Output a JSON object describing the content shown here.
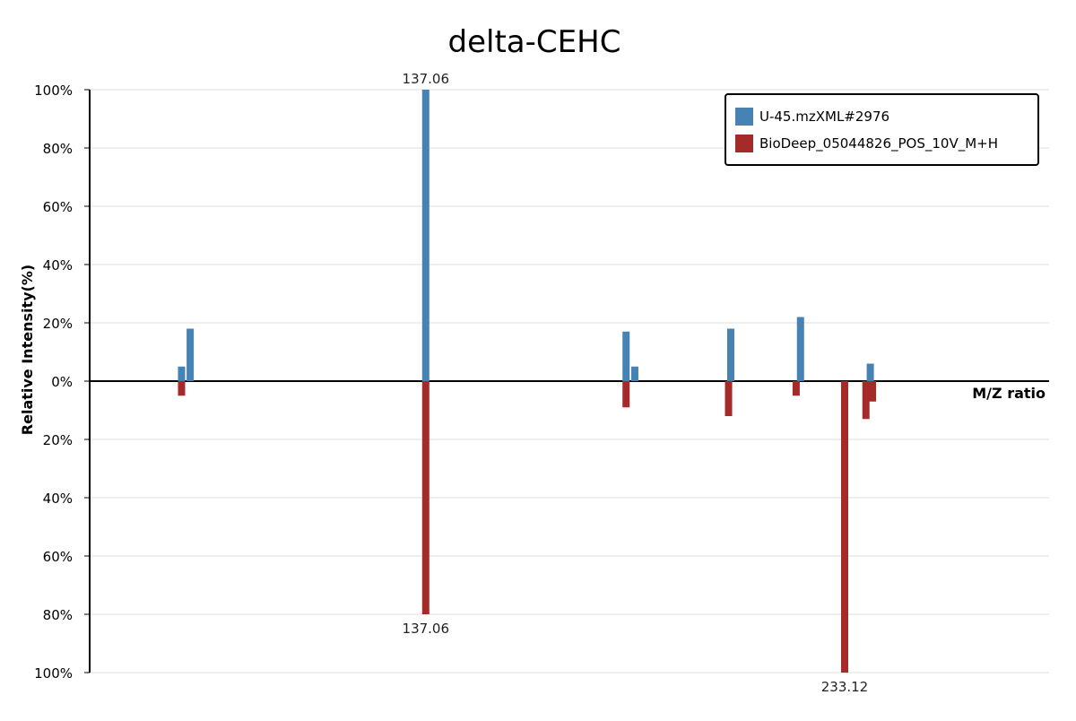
{
  "chart_data": {
    "type": "bar",
    "subtype": "mirrored-mass-spectrum",
    "title": "delta-CEHC",
    "xlabel": "M/Z ratio",
    "ylabel": "Relative Intensity(%)",
    "xlim": [
      60,
      280
    ],
    "ylim_top": [
      0,
      100
    ],
    "ylim_bottom": [
      0,
      100
    ],
    "yticks_top": [
      "0%",
      "20%",
      "40%",
      "60%",
      "80%",
      "100%"
    ],
    "yticks_bottom": [
      "20%",
      "40%",
      "60%",
      "80%",
      "100%"
    ],
    "grid": true,
    "legend_position": "top-right",
    "series": [
      {
        "name": "U-45.mzXML#2976",
        "color": "#4682b4",
        "direction": "up",
        "points": [
          {
            "mz": 81.07,
            "intensity": 5
          },
          {
            "mz": 83.05,
            "intensity": 18
          },
          {
            "mz": 137.06,
            "intensity": 100,
            "label": "137.06"
          },
          {
            "mz": 183.0,
            "intensity": 17
          },
          {
            "mz": 185.0,
            "intensity": 5
          },
          {
            "mz": 207.0,
            "intensity": 18
          },
          {
            "mz": 223.0,
            "intensity": 22
          },
          {
            "mz": 239.0,
            "intensity": 6
          }
        ]
      },
      {
        "name": "BioDeep_05044826_POS_10V_M+H",
        "color": "#a52a2a",
        "direction": "down",
        "points": [
          {
            "mz": 81.07,
            "intensity": 5
          },
          {
            "mz": 137.06,
            "intensity": 80,
            "label": "137.06"
          },
          {
            "mz": 183.0,
            "intensity": 9
          },
          {
            "mz": 206.5,
            "intensity": 12
          },
          {
            "mz": 222.0,
            "intensity": 5
          },
          {
            "mz": 233.12,
            "intensity": 100,
            "label": "233.12"
          },
          {
            "mz": 238.0,
            "intensity": 13
          },
          {
            "mz": 239.5,
            "intensity": 7
          }
        ]
      }
    ]
  }
}
